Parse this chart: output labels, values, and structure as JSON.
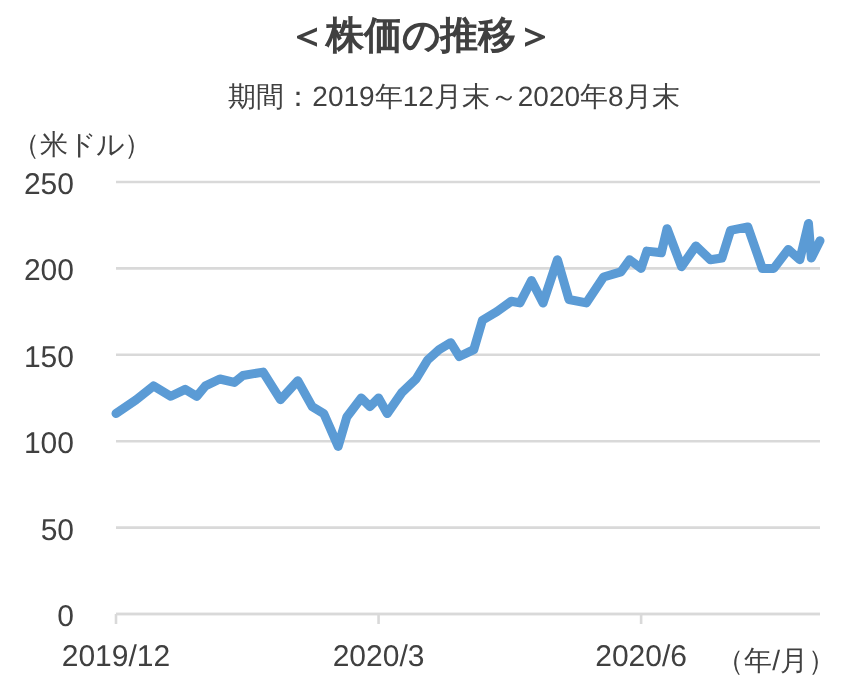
{
  "chart_data": {
    "type": "line",
    "title": "＜株価の推移＞",
    "subtitle": "期間：2019年12月末～2020年8月末",
    "ylabel": "（米ドル）",
    "xlabel": "（年/月）",
    "x": [
      "2019-12-31",
      "2020-01-07",
      "2020-01-13",
      "2020-01-19",
      "2020-01-24",
      "2020-01-28",
      "2020-01-31",
      "2020-02-05",
      "2020-02-10",
      "2020-02-13",
      "2020-02-20",
      "2020-02-26",
      "2020-03-03",
      "2020-03-08",
      "2020-03-12",
      "2020-03-17",
      "2020-03-20",
      "2020-03-25",
      "2020-03-28",
      "2020-03-31",
      "2020-04-03",
      "2020-04-08",
      "2020-04-13",
      "2020-04-17",
      "2020-04-21",
      "2020-04-25",
      "2020-04-28",
      "2020-05-03",
      "2020-05-06",
      "2020-05-11",
      "2020-05-16",
      "2020-05-19",
      "2020-05-23",
      "2020-05-27",
      "2020-06-01",
      "2020-06-05",
      "2020-06-11",
      "2020-06-17",
      "2020-06-23",
      "2020-06-26",
      "2020-06-30",
      "2020-07-02",
      "2020-07-07",
      "2020-07-09",
      "2020-07-14",
      "2020-07-19",
      "2020-07-24",
      "2020-07-28",
      "2020-07-31",
      "2020-08-06",
      "2020-08-11",
      "2020-08-15",
      "2020-08-20",
      "2020-08-24",
      "2020-08-27",
      "2020-08-28",
      "2020-08-31"
    ],
    "series": [
      {
        "color": "#5b9bd5",
        "values": [
          116,
          124,
          132,
          126,
          130,
          126,
          132,
          136,
          134,
          138,
          140,
          124,
          135,
          120,
          116,
          97,
          114,
          125,
          120,
          125,
          116,
          128,
          136,
          147,
          153,
          157,
          149,
          153,
          170,
          175,
          181,
          180,
          193,
          180,
          205,
          182,
          180,
          195,
          198,
          205,
          200,
          210,
          209,
          223,
          201,
          213,
          205,
          206,
          222,
          224,
          200,
          200,
          211,
          205,
          226,
          206,
          216
        ]
      }
    ],
    "xlim": [
      "2019-12-31",
      "2020-08-31"
    ],
    "xticks": [
      {
        "value": "2019-12-31",
        "label": "2019/12"
      },
      {
        "value": "2020-03-31",
        "label": "2020/3"
      },
      {
        "value": "2020-06-30",
        "label": "2020/6"
      }
    ],
    "ylim": [
      0,
      250
    ],
    "yticks": [
      0,
      50,
      100,
      150,
      200,
      250
    ],
    "grid": "y",
    "marker": "none",
    "line_style": "solid"
  }
}
